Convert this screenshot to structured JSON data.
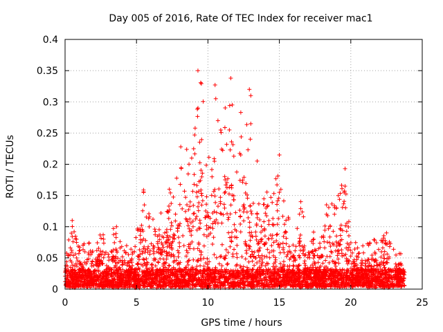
{
  "chart_data": {
    "type": "scatter",
    "title": "Day 005 of 2016, Rate Of TEC Index for receiver mac1",
    "xlabel": "GPS time / hours",
    "ylabel": "ROTI / TECUs",
    "xlim": [
      0,
      25
    ],
    "ylim": [
      0,
      0.4
    ],
    "x_ticks": [
      "0",
      "5",
      "10",
      "15",
      "20",
      "25"
    ],
    "y_ticks": [
      "0",
      "0.05",
      "0.1",
      "0.15",
      "0.2",
      "0.25",
      "0.3",
      "0.35",
      "0.4"
    ],
    "x_tick_values": [
      0,
      5,
      10,
      15,
      20,
      25
    ],
    "y_tick_values": [
      0,
      0.05,
      0.1,
      0.15,
      0.2,
      0.25,
      0.3,
      0.35,
      0.4
    ],
    "grid": true,
    "marker": "+",
    "marker_color": "#ff0000",
    "series": [
      {
        "name": "ROTI",
        "envelope_note": "approximate upper envelope of dense point cloud (x in hours, y in TECU)",
        "envelope_x": [
          0.0,
          0.5,
          1.0,
          1.5,
          2.0,
          2.5,
          3.0,
          3.5,
          4.0,
          4.5,
          5.0,
          5.5,
          6.0,
          6.5,
          7.0,
          7.5,
          8.0,
          8.5,
          9.0,
          9.5,
          10.0,
          10.5,
          11.0,
          11.5,
          12.0,
          12.5,
          13.0,
          13.5,
          14.0,
          14.5,
          15.0,
          15.5,
          16.0,
          16.5,
          17.0,
          17.5,
          18.0,
          18.5,
          19.0,
          19.5,
          20.0,
          20.5,
          21.0,
          21.5,
          22.0,
          22.5,
          23.0,
          23.5,
          23.8
        ],
        "envelope_y": [
          0.04,
          0.11,
          0.07,
          0.075,
          0.06,
          0.09,
          0.075,
          0.1,
          0.065,
          0.075,
          0.085,
          0.155,
          0.105,
          0.12,
          0.145,
          0.16,
          0.2,
          0.23,
          0.23,
          0.35,
          0.2,
          0.33,
          0.25,
          0.34,
          0.2,
          0.32,
          0.24,
          0.2,
          0.17,
          0.145,
          0.21,
          0.13,
          0.085,
          0.14,
          0.09,
          0.1,
          0.08,
          0.14,
          0.13,
          0.2,
          0.08,
          0.065,
          0.065,
          0.08,
          0.07,
          0.09,
          0.06,
          0.06,
          0.04
        ],
        "highlights": [
          {
            "x": 9.3,
            "y": 0.35
          },
          {
            "x": 11.6,
            "y": 0.338
          },
          {
            "x": 10.5,
            "y": 0.327
          },
          {
            "x": 12.9,
            "y": 0.32
          },
          {
            "x": 13.0,
            "y": 0.31
          },
          {
            "x": 10.55,
            "y": 0.305
          },
          {
            "x": 11.7,
            "y": 0.295
          },
          {
            "x": 12.3,
            "y": 0.283
          },
          {
            "x": 10.7,
            "y": 0.27
          },
          {
            "x": 13.0,
            "y": 0.265
          },
          {
            "x": 11.5,
            "y": 0.255
          },
          {
            "x": 8.1,
            "y": 0.228
          },
          {
            "x": 9.0,
            "y": 0.225
          },
          {
            "x": 15.0,
            "y": 0.215
          },
          {
            "x": 19.6,
            "y": 0.193
          },
          {
            "x": 19.6,
            "y": 0.165
          },
          {
            "x": 16.5,
            "y": 0.14
          },
          {
            "x": 18.3,
            "y": 0.135
          },
          {
            "x": 19.0,
            "y": 0.13
          },
          {
            "x": 5.5,
            "y": 0.155
          },
          {
            "x": 7.3,
            "y": 0.16
          },
          {
            "x": 0.5,
            "y": 0.11
          },
          {
            "x": 3.6,
            "y": 0.1
          },
          {
            "x": 22.5,
            "y": 0.09
          }
        ]
      }
    ]
  }
}
